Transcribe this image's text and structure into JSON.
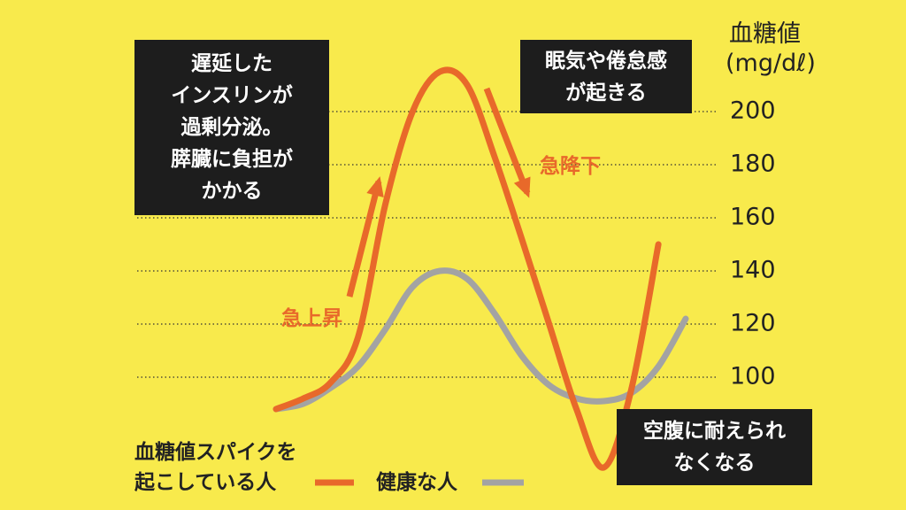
{
  "chart_data": {
    "type": "line",
    "y_label": "血糖値",
    "y_unit": "(mg/dℓ)",
    "categories": [
      null,
      null,
      null,
      null,
      null,
      null,
      null,
      null,
      null,
      null,
      null,
      null,
      null,
      null,
      null,
      null
    ],
    "series": [
      {
        "name": "血糖値スパイクを\n起こしている人",
        "color": "#e8692a",
        "values": [
          88,
          92,
          98,
          115,
          165,
          200,
          215,
          210,
          183,
          152,
          120,
          88,
          66,
          95,
          150,
          null
        ]
      },
      {
        "name": "健康な人",
        "color": "#a3a3a3",
        "values": [
          88,
          90,
          96,
          104,
          118,
          134,
          140,
          137,
          124,
          108,
          97,
          92,
          91,
          94,
          104,
          122
        ]
      }
    ],
    "ylim": [
      50,
      242
    ],
    "yticks": [
      100,
      120,
      140,
      160,
      180,
      200
    ],
    "grid": true,
    "annotations": [
      {
        "text": "遅延した\nインスリンが\n過剰分泌。\n膵臓に負担が\nかかる",
        "style": "box"
      },
      {
        "text": "眠気や倦怠感\nが起きる",
        "style": "box"
      },
      {
        "text": "空腹に耐えられ\nなくなる",
        "style": "box"
      },
      {
        "text": "急上昇",
        "style": "arrow-up"
      },
      {
        "text": "急降下",
        "style": "arrow-down"
      }
    ]
  }
}
